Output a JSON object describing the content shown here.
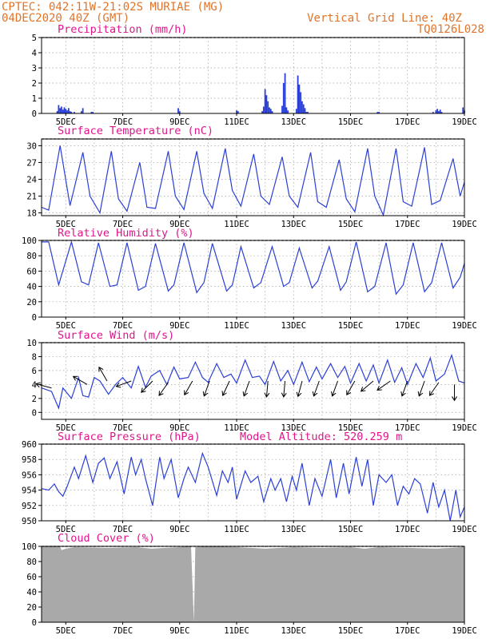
{
  "header": {
    "line1": "CPTEC:  042:11W-21:02S  MURIAE (MG)",
    "line2": "04DEC2020 40Z (GMT)",
    "right1": "Vertical Grid Line: 40Z",
    "right2": "TQ0126L028"
  },
  "colors": {
    "series": "#2b3fd6",
    "panel_title": "#e0168a",
    "header": "#e0742a",
    "cloud_fill": "#a9a9a9",
    "grid": "#a0a0a0"
  },
  "x_axis": {
    "tick_labels": [
      "5DEC",
      "7DEC",
      "9DEC",
      "11DEC",
      "13DEC",
      "15DEC",
      "17DEC",
      "19DEC"
    ],
    "tick_days": [
      5,
      7,
      9,
      11,
      13,
      15,
      17,
      19
    ],
    "grid_lines": "daily",
    "range_days": [
      4.15,
      19.0
    ]
  },
  "chart_data": [
    {
      "id": "precip",
      "type": "bar",
      "title": "Precipitation (mm/h)",
      "ylim": [
        0,
        5
      ],
      "yticks": [
        0,
        1,
        2,
        3,
        4,
        5
      ],
      "x_days": [
        4.7,
        4.75,
        4.8,
        4.85,
        4.9,
        4.95,
        5.0,
        5.05,
        5.1,
        5.15,
        5.2,
        5.3,
        5.55,
        5.6,
        5.9,
        5.95,
        8.95,
        9.0,
        11.0,
        11.05,
        11.9,
        11.95,
        12.0,
        12.05,
        12.1,
        12.15,
        12.2,
        12.25,
        12.6,
        12.65,
        12.7,
        12.75,
        12.8,
        13.1,
        13.15,
        13.2,
        13.25,
        13.3,
        13.35,
        13.4,
        13.45,
        13.5,
        15.95,
        16.0,
        17.9,
        18.0,
        18.05,
        18.1,
        18.15,
        18.2,
        18.95,
        19.0
      ],
      "values": [
        0.15,
        0.55,
        0.35,
        0.45,
        0.25,
        0.4,
        0.3,
        0.2,
        0.35,
        0.15,
        0.1,
        0.1,
        0.15,
        0.35,
        0.1,
        0.1,
        0.35,
        0.15,
        0.2,
        0.15,
        0.15,
        0.45,
        1.6,
        1.2,
        0.8,
        0.4,
        0.3,
        0.15,
        0.5,
        2.0,
        2.65,
        0.4,
        0.2,
        0.3,
        2.5,
        1.9,
        1.4,
        0.8,
        0.6,
        0.35,
        0.1,
        0.1,
        0.1,
        0.1,
        0.1,
        0.2,
        0.3,
        0.15,
        0.25,
        0.1,
        0.4,
        0.2
      ]
    },
    {
      "id": "temp",
      "type": "line",
      "title": "Surface Temperature (nC)",
      "ylim": [
        17.5,
        31.2
      ],
      "yticks": [
        18,
        21,
        24,
        27,
        30
      ],
      "x_days": [
        4.15,
        4.4,
        4.8,
        5.15,
        5.6,
        5.85,
        6.2,
        6.6,
        6.85,
        7.15,
        7.6,
        7.85,
        8.15,
        8.6,
        8.85,
        9.15,
        9.6,
        9.85,
        10.15,
        10.6,
        10.85,
        11.15,
        11.6,
        11.85,
        12.15,
        12.6,
        12.85,
        13.15,
        13.6,
        13.85,
        14.15,
        14.6,
        14.85,
        15.15,
        15.6,
        15.85,
        16.15,
        16.6,
        16.85,
        17.15,
        17.6,
        17.85,
        18.15,
        18.6,
        18.85,
        19.0
      ],
      "values": [
        19.0,
        18.5,
        30.0,
        19.3,
        28.8,
        21.0,
        18.0,
        29.0,
        20.5,
        18.3,
        27.0,
        19.0,
        18.8,
        29.0,
        21.0,
        18.6,
        29.0,
        21.5,
        18.8,
        29.5,
        22.0,
        19.2,
        28.5,
        21.0,
        19.5,
        28.0,
        21.0,
        19.0,
        28.8,
        20.0,
        19.0,
        27.5,
        20.5,
        18.2,
        29.5,
        21.0,
        17.6,
        29.5,
        20.0,
        19.2,
        29.7,
        19.5,
        20.2,
        27.7,
        21.0,
        23.5
      ]
    },
    {
      "id": "rh",
      "type": "line",
      "title": "Relative Humidity (%)",
      "ylim": [
        0,
        100
      ],
      "yticks": [
        0,
        20,
        40,
        60,
        80,
        100
      ],
      "x_days": [
        4.15,
        4.4,
        4.75,
        5.2,
        5.55,
        5.8,
        6.15,
        6.55,
        6.8,
        7.15,
        7.55,
        7.8,
        8.15,
        8.6,
        8.8,
        9.15,
        9.6,
        9.85,
        10.15,
        10.65,
        10.85,
        11.15,
        11.6,
        11.85,
        12.25,
        12.65,
        12.85,
        13.2,
        13.65,
        13.85,
        14.25,
        14.65,
        14.85,
        15.2,
        15.6,
        15.85,
        16.25,
        16.6,
        16.85,
        17.2,
        17.6,
        17.85,
        18.2,
        18.6,
        18.85,
        19.0
      ],
      "values": [
        98,
        98,
        42,
        98,
        46,
        42,
        97,
        40,
        42,
        97,
        35,
        40,
        96,
        34,
        42,
        97,
        32,
        45,
        96,
        34,
        42,
        92,
        38,
        45,
        92,
        40,
        45,
        90,
        38,
        47,
        92,
        35,
        46,
        98,
        33,
        40,
        97,
        30,
        42,
        97,
        33,
        45,
        97,
        38,
        52,
        70
      ]
    },
    {
      "id": "wind",
      "type": "line",
      "title": "Surface Wind (m/s)",
      "ylim": [
        -1,
        10
      ],
      "yticks": [
        0,
        2,
        4,
        6,
        8,
        10
      ],
      "x_days": [
        4.15,
        4.5,
        4.75,
        4.9,
        5.2,
        5.45,
        5.6,
        5.8,
        6.0,
        6.2,
        6.5,
        6.75,
        7.0,
        7.3,
        7.55,
        7.8,
        8.0,
        8.3,
        8.55,
        8.8,
        9.0,
        9.3,
        9.55,
        9.8,
        10.0,
        10.3,
        10.55,
        10.8,
        11.0,
        11.3,
        11.55,
        11.8,
        12.0,
        12.3,
        12.55,
        12.8,
        13.0,
        13.3,
        13.55,
        13.8,
        14.0,
        14.3,
        14.55,
        14.8,
        15.0,
        15.3,
        15.55,
        15.8,
        16.0,
        16.3,
        16.55,
        16.8,
        17.0,
        17.3,
        17.55,
        17.8,
        18.0,
        18.3,
        18.55,
        18.8,
        19.0
      ],
      "values": [
        3.5,
        3.0,
        0.6,
        3.5,
        2.0,
        5.0,
        2.4,
        2.2,
        5.0,
        4.5,
        2.6,
        4.0,
        5.0,
        3.5,
        6.6,
        3.6,
        5.2,
        6.0,
        4.0,
        6.5,
        4.8,
        5.0,
        7.2,
        5.0,
        4.3,
        7.0,
        5.0,
        5.5,
        4.2,
        7.5,
        5.0,
        5.2,
        4.0,
        7.3,
        4.5,
        6.0,
        4.0,
        7.2,
        4.4,
        6.5,
        4.8,
        7.0,
        5.0,
        6.6,
        4.2,
        7.0,
        4.5,
        6.8,
        4.2,
        7.5,
        4.3,
        6.4,
        4.0,
        7.0,
        5.0,
        7.8,
        4.5,
        5.5,
        8.2,
        4.5,
        4.2
      ],
      "arrows": {
        "x_days": [
          4.5,
          5.75,
          6.45,
          7.3,
          8.05,
          8.6,
          9.45,
          10.05,
          10.75,
          11.45,
          12.1,
          12.7,
          13.3,
          13.9,
          14.55,
          15.15,
          15.8,
          16.4,
          17.0,
          17.6,
          18.1,
          18.65
        ],
        "direction_deg": [
          285,
          300,
          330,
          250,
          225,
          215,
          210,
          200,
          205,
          200,
          185,
          185,
          195,
          200,
          200,
          210,
          230,
          235,
          200,
          200,
          215,
          180
        ],
        "speed": [
          3.5,
          4.0,
          4.5,
          4.5,
          4.5,
          4.3,
          4.5,
          4.5,
          4.5,
          4.5,
          4.5,
          4.5,
          4.5,
          4.5,
          4.5,
          4.5,
          4.5,
          4.5,
          4.5,
          4.5,
          4.3,
          4.0
        ]
      }
    },
    {
      "id": "pres",
      "type": "line",
      "title": "Surface Pressure (hPa)",
      "subtitle": "Model Altitude: 520.259  m",
      "ylim": [
        950,
        960
      ],
      "yticks": [
        950,
        952,
        954,
        956,
        958,
        960
      ],
      "x_days": [
        4.15,
        4.4,
        4.6,
        4.75,
        4.9,
        5.05,
        5.3,
        5.45,
        5.7,
        5.95,
        6.15,
        6.35,
        6.55,
        6.8,
        7.05,
        7.3,
        7.45,
        7.65,
        7.8,
        8.05,
        8.3,
        8.45,
        8.7,
        8.95,
        9.15,
        9.3,
        9.55,
        9.8,
        10.0,
        10.3,
        10.5,
        10.7,
        10.85,
        11.0,
        11.3,
        11.5,
        11.75,
        11.95,
        12.2,
        12.35,
        12.55,
        12.75,
        12.95,
        13.1,
        13.3,
        13.55,
        13.75,
        14.0,
        14.3,
        14.5,
        14.75,
        14.95,
        15.2,
        15.4,
        15.6,
        15.8,
        16.0,
        16.25,
        16.45,
        16.65,
        16.85,
        17.05,
        17.25,
        17.45,
        17.7,
        17.9,
        18.1,
        18.3,
        18.5,
        18.7,
        18.85,
        19.0
      ],
      "values": [
        954.2,
        954.0,
        954.8,
        953.8,
        953.2,
        954.5,
        957.0,
        955.5,
        958.5,
        955.0,
        957.5,
        958.2,
        955.5,
        957.7,
        953.5,
        958.3,
        956.0,
        958.0,
        955.5,
        952.0,
        958.3,
        955.5,
        958.0,
        953.0,
        955.5,
        957.0,
        955.0,
        958.8,
        957.0,
        953.3,
        956.5,
        955.0,
        957.0,
        952.8,
        956.5,
        955.0,
        955.8,
        952.5,
        955.5,
        954.0,
        955.5,
        952.5,
        955.8,
        954.0,
        957.5,
        952.0,
        955.5,
        953.2,
        958.0,
        953.0,
        957.5,
        953.5,
        958.3,
        954.5,
        958.0,
        952.0,
        956.0,
        955.0,
        956.0,
        952.0,
        954.5,
        953.5,
        955.5,
        954.8,
        951.0,
        955.0,
        951.8,
        954.0,
        950.0,
        954.0,
        950.5,
        951.8
      ]
    },
    {
      "id": "cloud",
      "type": "area",
      "title": "Cloud Cover (%)",
      "ylim": [
        0,
        100
      ],
      "yticks": [
        0,
        20,
        40,
        60,
        80,
        100
      ],
      "x_days": [
        4.15,
        4.8,
        4.85,
        5.0,
        5.3,
        6.5,
        7.5,
        8.0,
        8.5,
        9.0,
        9.4,
        9.5,
        9.55,
        10.0,
        11.0,
        12.0,
        13.0,
        14.0,
        15.0,
        15.5,
        16.0,
        17.0,
        18.0,
        18.5,
        18.9,
        19.0
      ],
      "values": [
        100,
        100,
        95,
        97,
        99,
        98,
        99,
        97,
        98,
        99,
        100,
        0,
        99,
        100,
        99,
        97,
        99,
        98,
        99,
        97,
        99,
        98,
        97,
        98,
        99,
        100
      ]
    }
  ]
}
